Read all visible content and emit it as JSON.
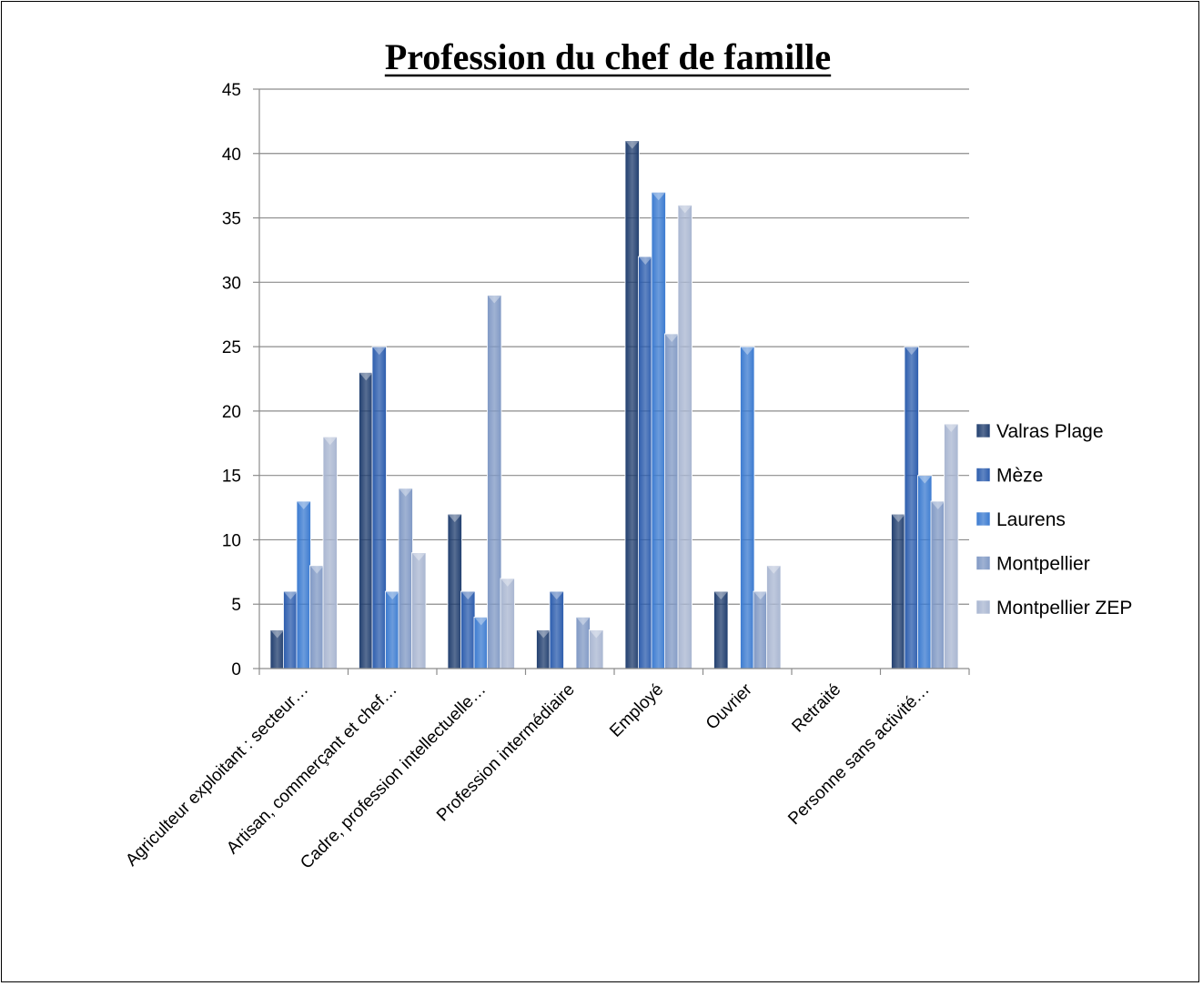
{
  "chart_data": {
    "type": "bar",
    "title": "Profession du chef de famille",
    "xlabel": "",
    "ylabel": "",
    "ylim": [
      0,
      45
    ],
    "yticks": [
      0,
      5,
      10,
      15,
      20,
      25,
      30,
      35,
      40,
      45
    ],
    "grid": true,
    "legend_position": "right",
    "categories": [
      "Agriculteur exploitant : secteur…",
      "Artisan, commerçant et chef…",
      "Cadre, profession intellectuelle…",
      "Profession intermédiaire",
      "Employé",
      "Ouvrier",
      "Retraité",
      "Personne sans activité…"
    ],
    "series": [
      {
        "name": "Valras Plage",
        "color": "#1f3d6e",
        "values": [
          3,
          23,
          12,
          3,
          41,
          6,
          0,
          12
        ]
      },
      {
        "name": "Mèze",
        "color": "#2b5cad",
        "values": [
          6,
          25,
          6,
          6,
          32,
          0,
          0,
          25
        ]
      },
      {
        "name": "Laurens",
        "color": "#3a7ad0",
        "values": [
          13,
          6,
          4,
          0,
          37,
          25,
          0,
          15
        ]
      },
      {
        "name": "Montpellier",
        "color": "#7f98c4",
        "values": [
          8,
          14,
          29,
          4,
          26,
          6,
          0,
          13
        ]
      },
      {
        "name": "Montpellier ZEP",
        "color": "#a9b6d1",
        "values": [
          18,
          9,
          7,
          3,
          36,
          8,
          0,
          19
        ]
      }
    ]
  }
}
